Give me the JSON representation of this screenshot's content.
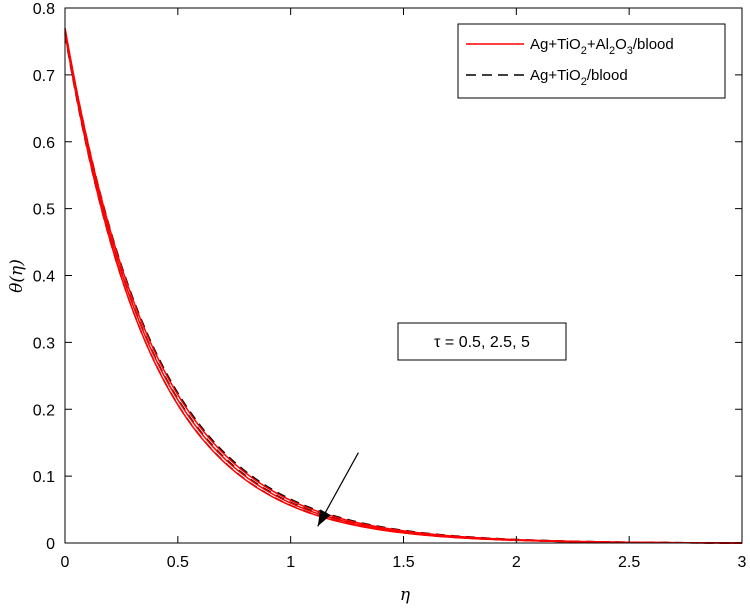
{
  "chart_data": {
    "type": "line",
    "xlabel": "η",
    "ylabel": "θ(η)",
    "xlim": [
      0,
      3
    ],
    "ylim": [
      0,
      0.8
    ],
    "xticks": [
      "0",
      "0.5",
      "1",
      "1.5",
      "2",
      "2.5",
      "3"
    ],
    "yticks": [
      "0",
      "0.1",
      "0.2",
      "0.3",
      "0.4",
      "0.5",
      "0.6",
      "0.7",
      "0.8"
    ],
    "grid": false,
    "legend_position": "top-right",
    "legend": [
      {
        "prefix": "Ag+TiO",
        "sub1": "2",
        "mid": "+Al",
        "sub2": "2",
        "mid2": "O",
        "sub3": "3",
        "suffix": "/blood",
        "color": "#ff0000",
        "style": "solid"
      },
      {
        "prefix": "Ag+TiO",
        "sub1": "2",
        "suffix": "/blood",
        "color": "#000000",
        "style": "dashed"
      }
    ],
    "annotation": {
      "text": "τ = 0.5, 2.5, 5",
      "arrow_from": [
        1.3,
        0.135
      ],
      "arrow_to": [
        1.12,
        0.025
      ]
    },
    "series": [
      {
        "group": 0,
        "color": "#ff0000",
        "style": "solid",
        "tau": 0.5,
        "y0": 0.77,
        "k": 2.49
      },
      {
        "group": 0,
        "color": "#ff0000",
        "style": "solid",
        "tau": 2.5,
        "y0": 0.766,
        "k": 2.55
      },
      {
        "group": 0,
        "color": "#ff0000",
        "style": "solid",
        "tau": 5,
        "y0": 0.762,
        "k": 2.61
      },
      {
        "group": 1,
        "color": "#000000",
        "style": "dashed",
        "tau": 0.5,
        "y0": 0.768,
        "k": 2.46
      },
      {
        "group": 1,
        "color": "#000000",
        "style": "dashed",
        "tau": 2.5,
        "y0": 0.764,
        "k": 2.53
      },
      {
        "group": 1,
        "color": "#000000",
        "style": "dashed",
        "tau": 5,
        "y0": 0.76,
        "k": 2.6
      }
    ]
  }
}
